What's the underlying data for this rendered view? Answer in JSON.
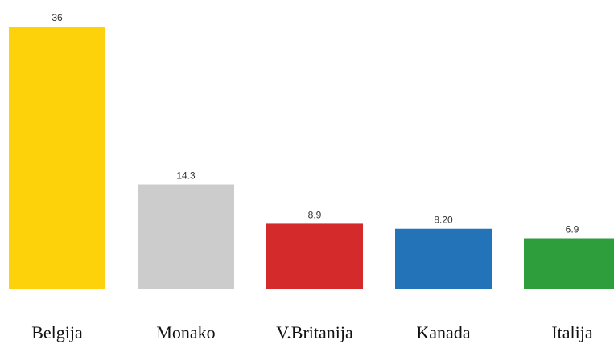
{
  "chart_data": {
    "type": "bar",
    "categories": [
      "Belgija",
      "Monako",
      "V.Britanija",
      "Kanada",
      "Italija"
    ],
    "values": [
      36,
      14.3,
      8.9,
      8.2,
      6.9
    ],
    "value_labels": [
      "36",
      "14.3",
      "8.9",
      "8.20",
      "6.9"
    ],
    "colors": [
      "#FDD20A",
      "#CCCCCC",
      "#D42A2B",
      "#2373B8",
      "#2E9E3C"
    ],
    "title": "",
    "xlabel": "",
    "ylabel": "",
    "ylim": [
      0,
      36
    ],
    "grid": false,
    "legend": "none"
  }
}
